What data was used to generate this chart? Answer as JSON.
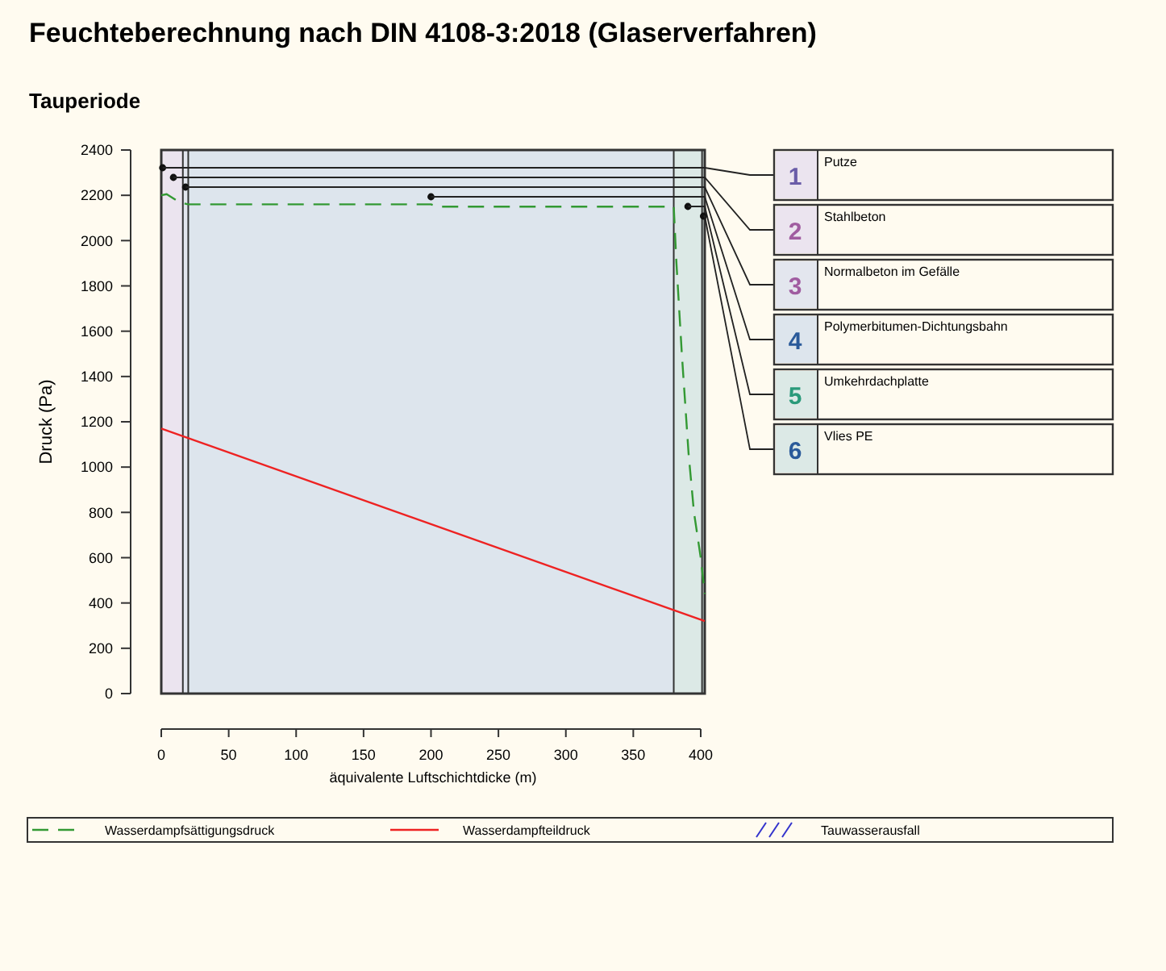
{
  "chart_data": {
    "type": "line",
    "title": "Feuchteberechnung nach DIN 4108-3:2018 (Glaserverfahren)",
    "subtitle": "Tauperiode",
    "xlabel": "äquivalente Luftschichtdicke (m)",
    "ylabel": "Druck (Pa)",
    "xlim": [
      0,
      403
    ],
    "ylim": [
      0,
      2400
    ],
    "xticks": [
      0,
      50,
      100,
      150,
      200,
      250,
      300,
      350,
      400
    ],
    "yticks": [
      0,
      200,
      400,
      600,
      800,
      1000,
      1200,
      1400,
      1600,
      1800,
      2000,
      2200,
      2400
    ],
    "grid": false,
    "legend": "bottom",
    "series": [
      {
        "name": "Wasserdampfsättigungsdruck",
        "color": "#339933",
        "line_style": "dashed",
        "x": [
          0,
          4,
          8,
          12,
          16,
          20,
          200,
          205,
          380,
          382,
          386,
          391,
          395,
          400,
          403
        ],
        "values": [
          2200,
          2205,
          2190,
          2175,
          2165,
          2160,
          2160,
          2150,
          2150,
          1900,
          1500,
          1060,
          800,
          600,
          440
        ]
      },
      {
        "name": "Wasserdampfteildruck",
        "color": "#ee2222",
        "line_style": "solid",
        "x": [
          0,
          403
        ],
        "values": [
          1170,
          320
        ]
      },
      {
        "name": "Tauwasserausfall",
        "type": "area",
        "color": "#3333cc"
      }
    ],
    "bands": [
      {
        "axis": "x",
        "from": 0,
        "to": 2,
        "color": "#ebe4ef"
      },
      {
        "axis": "x",
        "from": 2,
        "to": 16,
        "color": "#ebe4ef"
      },
      {
        "axis": "x",
        "from": 16,
        "to": 20,
        "color": "#e3e6ee"
      },
      {
        "axis": "x",
        "from": 20,
        "to": 380,
        "color": "#dde5ed"
      },
      {
        "axis": "x",
        "from": 380,
        "to": 401,
        "color": "#dce9e6"
      },
      {
        "axis": "x",
        "from": 401,
        "to": 403,
        "color": "#dce9e6"
      }
    ],
    "annotations": [
      "1",
      "Putze",
      "2",
      "Stahlbeton",
      "3",
      "Normalbeton im Gefälle",
      "4",
      "Polymerbitumen-Dichtungsbahn",
      "5",
      "Umkehrdachplatte",
      "6",
      "Vlies PE"
    ]
  }
}
